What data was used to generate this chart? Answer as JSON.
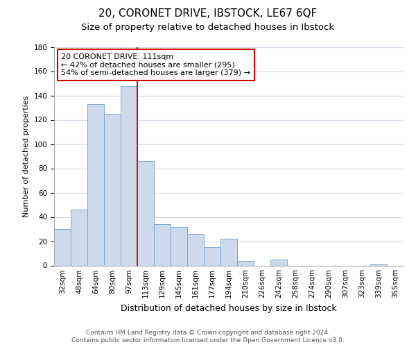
{
  "title": "20, CORONET DRIVE, IBSTOCK, LE67 6QF",
  "subtitle": "Size of property relative to detached houses in Ibstock",
  "xlabel": "Distribution of detached houses by size in Ibstock",
  "ylabel": "Number of detached properties",
  "bar_labels": [
    "32sqm",
    "48sqm",
    "64sqm",
    "80sqm",
    "97sqm",
    "113sqm",
    "129sqm",
    "145sqm",
    "161sqm",
    "177sqm",
    "194sqm",
    "210sqm",
    "226sqm",
    "242sqm",
    "258sqm",
    "274sqm",
    "290sqm",
    "307sqm",
    "323sqm",
    "339sqm",
    "355sqm"
  ],
  "bar_values": [
    30,
    46,
    133,
    125,
    148,
    86,
    34,
    32,
    26,
    15,
    22,
    4,
    0,
    5,
    0,
    0,
    0,
    0,
    0,
    1,
    0
  ],
  "bar_color": "#ccdaeb",
  "bar_edge_color": "#7aa8cc",
  "marker_color": "#cc0000",
  "annotation_text": "20 CORONET DRIVE: 111sqm\n← 42% of detached houses are smaller (295)\n54% of semi-detached houses are larger (379) →",
  "annotation_box_edge_color": "#cc0000",
  "annotation_box_face_color": "#ffffff",
  "ylim": [
    0,
    180
  ],
  "yticks": [
    0,
    20,
    40,
    60,
    80,
    100,
    120,
    140,
    160,
    180
  ],
  "footer_line1": "Contains HM Land Registry data © Crown copyright and database right 2024.",
  "footer_line2": "Contains public sector information licensed under the Open Government Licence v3.0.",
  "title_fontsize": 11,
  "subtitle_fontsize": 9.5,
  "xlabel_fontsize": 9,
  "ylabel_fontsize": 8,
  "tick_fontsize": 7.5,
  "annotation_fontsize": 8,
  "footer_fontsize": 6.5,
  "background_color": "#ffffff",
  "grid_color": "#d0dce8"
}
